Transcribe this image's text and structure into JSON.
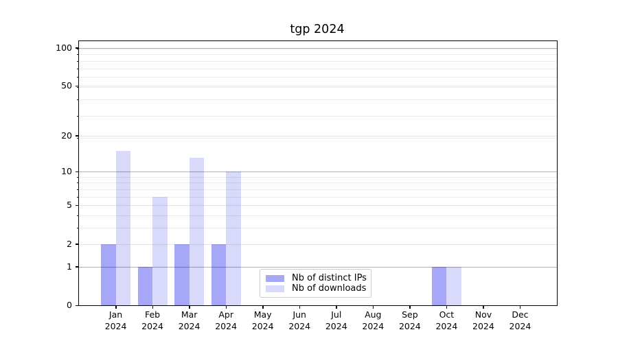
{
  "figure": {
    "title": "tgp 2024"
  },
  "chart_data": {
    "type": "bar",
    "title": "tgp 2024",
    "categories": [
      "Jan 2024",
      "Feb 2024",
      "Mar 2024",
      "Apr 2024",
      "May 2024",
      "Jun 2024",
      "Jul 2024",
      "Aug 2024",
      "Sep 2024",
      "Oct 2024",
      "Nov 2024",
      "Dec 2024"
    ],
    "month_abbrs": [
      "Jan",
      "Feb",
      "Mar",
      "Apr",
      "May",
      "Jun",
      "Jul",
      "Aug",
      "Sep",
      "Oct",
      "Nov",
      "Dec"
    ],
    "year_label": "2024",
    "series": [
      {
        "name": "Nb of distinct IPs",
        "color": "#a7a7f7",
        "values": [
          2,
          1,
          2,
          2,
          0,
          0,
          0,
          0,
          0,
          1,
          0,
          0
        ]
      },
      {
        "name": "Nb of downloads",
        "color": "#d9d9fb",
        "values": [
          15,
          6,
          13,
          10,
          0,
          0,
          0,
          0,
          0,
          1,
          0,
          0
        ]
      }
    ],
    "y_ticks": [
      0,
      1,
      2,
      5,
      10,
      20,
      50,
      100
    ],
    "y_ticks_emphasized": [
      1,
      10,
      100
    ],
    "y_scale": "log10(value+1)",
    "ylim": [
      0,
      113
    ],
    "grid": "horizontal major and log minor lines",
    "legend_position": "inside plot, lower center-left",
    "xlabel": "",
    "ylabel": ""
  }
}
